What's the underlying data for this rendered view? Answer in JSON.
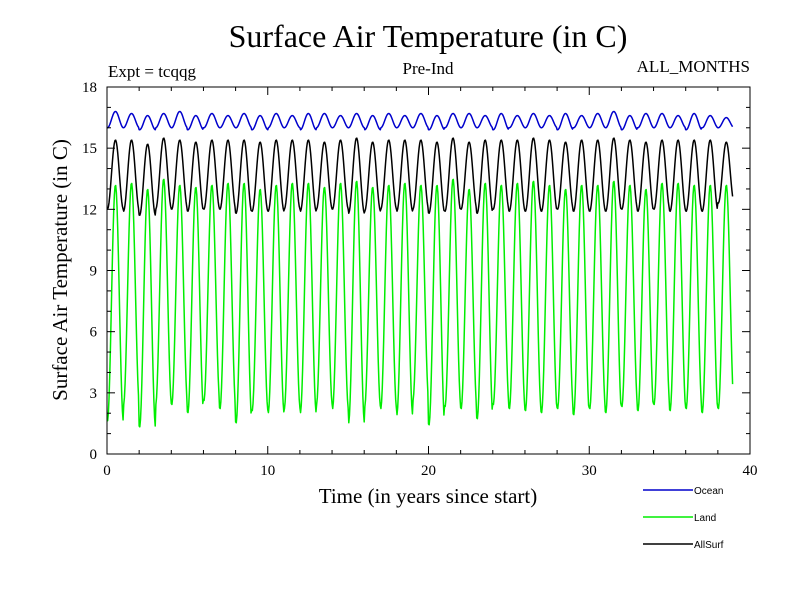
{
  "chart_data": {
    "type": "line",
    "title": "Surface Air Temperature (in C)",
    "left_label": "Expt = tcqqg",
    "center_label": "Pre-Ind",
    "right_label": "ALL_MONTHS",
    "xlabel": "Time (in years since start)",
    "ylabel": "Surface Air Temperature (in C)",
    "xlim": [
      0,
      40
    ],
    "ylim": [
      0,
      18
    ],
    "x_ticks": [
      "0",
      "10",
      "20",
      "30",
      "40"
    ],
    "y_ticks": [
      "0",
      "3",
      "6",
      "9",
      "12",
      "15",
      "18"
    ],
    "x_tick_values": [
      0,
      10,
      20,
      30,
      40
    ],
    "y_tick_values": [
      0,
      3,
      6,
      9,
      12,
      15,
      18
    ],
    "series": [
      {
        "name": "Ocean",
        "color": "#0000cc",
        "x_start": 0,
        "x_end": 38.92,
        "cycle_years": 1,
        "annual_min": [
          16.0,
          16.0,
          15.9,
          16.0,
          16.0,
          15.9,
          16.0,
          16.0,
          16.0,
          15.9,
          16.0,
          16.0,
          15.9,
          16.0,
          16.0,
          16.0,
          15.9,
          16.0,
          16.0,
          16.0,
          15.9,
          16.0,
          16.0,
          16.0,
          15.9,
          16.0,
          16.0,
          16.0,
          15.9,
          16.0,
          16.0,
          16.0,
          15.9,
          16.0,
          16.0,
          16.0,
          15.9,
          16.0,
          16.0
        ],
        "annual_max": [
          16.8,
          16.7,
          16.6,
          16.7,
          16.8,
          16.6,
          16.7,
          16.6,
          16.7,
          16.6,
          16.7,
          16.6,
          16.7,
          16.7,
          16.6,
          16.7,
          16.6,
          16.7,
          16.6,
          16.7,
          16.6,
          16.7,
          16.7,
          16.6,
          16.7,
          16.6,
          16.7,
          16.6,
          16.7,
          16.6,
          16.7,
          16.8,
          16.6,
          16.7,
          16.7,
          16.6,
          16.7,
          16.6,
          16.5
        ]
      },
      {
        "name": "Land",
        "color": "#00ee00",
        "x_start": 0,
        "x_end": 38.92,
        "cycle_years": 1,
        "annual_min": [
          1.6,
          2.4,
          1.3,
          2.4,
          2.4,
          2.0,
          2.6,
          2.2,
          1.5,
          2.1,
          2.0,
          2.2,
          2.0,
          2.4,
          2.2,
          1.5,
          2.3,
          2.2,
          1.9,
          2.6,
          1.4,
          2.3,
          2.2,
          1.7,
          2.4,
          2.2,
          2.1,
          2.0,
          2.2,
          1.9,
          2.2,
          2.0,
          2.3,
          2.1,
          2.4,
          2.1,
          2.2,
          2.0,
          2.2
        ],
        "annual_max": [
          13.2,
          13.3,
          13.0,
          13.5,
          13.2,
          13.1,
          13.2,
          13.3,
          13.3,
          13.0,
          13.2,
          13.3,
          13.3,
          13.1,
          13.3,
          13.4,
          13.1,
          13.2,
          13.3,
          13.2,
          13.2,
          13.5,
          13.0,
          13.3,
          13.2,
          13.3,
          13.4,
          13.2,
          13.0,
          13.2,
          13.2,
          13.4,
          13.2,
          13.0,
          13.3,
          13.3,
          13.2,
          13.2,
          13.2
        ]
      },
      {
        "name": "AllSurf",
        "color": "#000000",
        "x_start": 0,
        "x_end": 38.92,
        "cycle_years": 1,
        "annual_min": [
          12.0,
          11.9,
          11.7,
          12.0,
          12.0,
          11.9,
          12.0,
          12.0,
          11.8,
          11.9,
          11.9,
          12.0,
          11.9,
          12.0,
          12.0,
          11.8,
          11.9,
          12.0,
          11.9,
          12.0,
          11.8,
          11.9,
          12.0,
          11.8,
          12.0,
          11.9,
          11.9,
          11.9,
          12.0,
          11.9,
          11.9,
          11.9,
          12.0,
          11.9,
          12.0,
          11.9,
          11.9,
          11.9,
          12.3
        ],
        "annual_max": [
          15.4,
          15.4,
          15.2,
          15.5,
          15.4,
          15.3,
          15.4,
          15.4,
          15.4,
          15.3,
          15.4,
          15.4,
          15.4,
          15.3,
          15.4,
          15.5,
          15.3,
          15.4,
          15.4,
          15.4,
          15.3,
          15.5,
          15.3,
          15.4,
          15.4,
          15.4,
          15.5,
          15.4,
          15.3,
          15.4,
          15.4,
          15.5,
          15.4,
          15.3,
          15.4,
          15.4,
          15.4,
          15.4,
          15.3
        ]
      }
    ],
    "legend_position": "bottom-right"
  }
}
